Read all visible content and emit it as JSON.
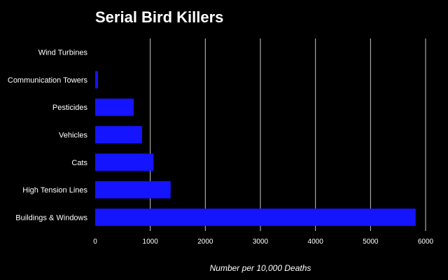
{
  "chart_data": {
    "type": "bar",
    "orientation": "horizontal",
    "title": "Serial Bird Killers",
    "xlabel": "Number per 10,000 Deaths",
    "ylabel": "",
    "categories": [
      "Wind Turbines",
      "Communication Towers",
      "Pesticides",
      "Vehicles",
      "Cats",
      "High Tension Lines",
      "Buildings & Windows"
    ],
    "values": [
      0.03,
      50,
      700,
      850,
      1060,
      1370,
      5820
    ],
    "xlim": [
      0,
      6000
    ],
    "xticks": [
      "0",
      "1000",
      "2000",
      "3000",
      "4000",
      "5000",
      "6000"
    ],
    "grid": true,
    "legend": "none",
    "colors": {
      "background": "#000000",
      "bar": "#1414ff",
      "grid": "#c8c8c8",
      "text": "#ffffff"
    }
  }
}
